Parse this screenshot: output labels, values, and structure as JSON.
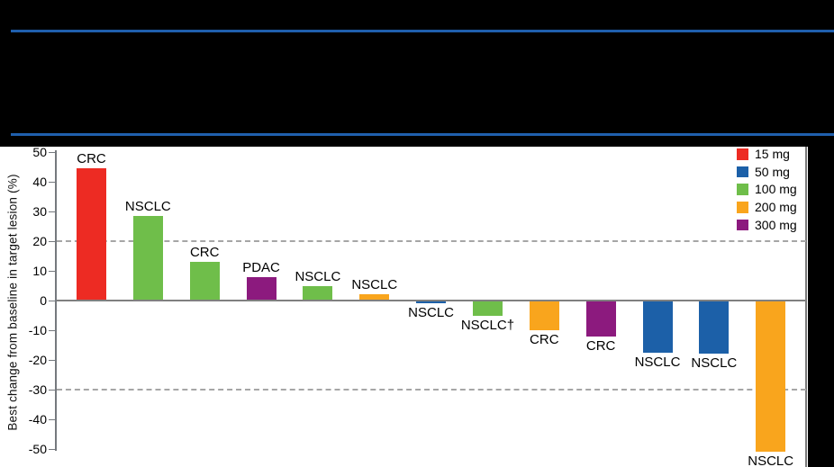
{
  "page": {
    "background_color": "#000000",
    "divider_color": "#1F5FAD",
    "panel_color": "#FFFFFF"
  },
  "chart_data": {
    "type": "bar",
    "subtype": "waterfall",
    "title": "",
    "ylabel": "Best change from baseline in target lesion (%)",
    "ylim": [
      -50,
      50
    ],
    "yticks": [
      50,
      40,
      30,
      20,
      10,
      0,
      -10,
      -20,
      -30,
      -40,
      -50
    ],
    "reference_lines": [
      20,
      -30
    ],
    "grid": "dashed horizontal reference lines at +20 and -30 only",
    "legend": {
      "position": "top-right",
      "items": [
        {
          "label": "15 mg",
          "color": "#ED2B23"
        },
        {
          "label": "50 mg",
          "color": "#1C60A8"
        },
        {
          "label": "100 mg",
          "color": "#6FBE4A"
        },
        {
          "label": "200 mg",
          "color": "#F9A51D"
        },
        {
          "label": "300 mg",
          "color": "#8C1A7E"
        }
      ]
    },
    "bars": [
      {
        "label": "CRC",
        "dose": "15 mg",
        "value": 44.5
      },
      {
        "label": "NSCLC",
        "dose": "100 mg",
        "value": 28.5
      },
      {
        "label": "CRC",
        "dose": "100 mg",
        "value": 13
      },
      {
        "label": "PDAC",
        "dose": "300 mg",
        "value": 8
      },
      {
        "label": "NSCLC",
        "dose": "100 mg",
        "value": 5
      },
      {
        "label": "NSCLC",
        "dose": "200 mg",
        "value": 2
      },
      {
        "label": "NSCLC",
        "dose": "50 mg",
        "value": -1
      },
      {
        "label": "NSCLC†",
        "dose": "100 mg",
        "value": -5
      },
      {
        "label": "CRC",
        "dose": "200 mg",
        "value": -10
      },
      {
        "label": "CRC",
        "dose": "300 mg",
        "value": -12
      },
      {
        "label": "NSCLC",
        "dose": "50 mg",
        "value": -17.5
      },
      {
        "label": "NSCLC",
        "dose": "50 mg",
        "value": -18
      },
      {
        "label": "NSCLC",
        "dose": "200 mg",
        "value": -51
      }
    ]
  }
}
